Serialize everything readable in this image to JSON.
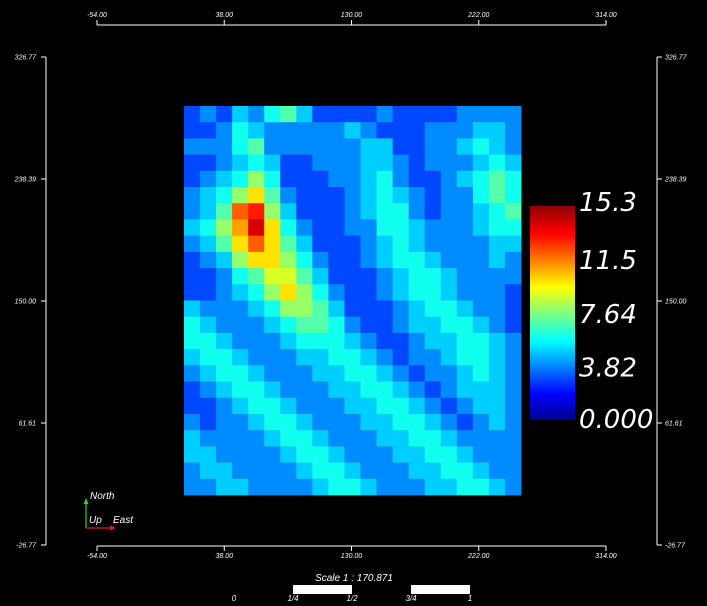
{
  "chart_data": {
    "type": "heatmap",
    "x_ticks": [
      "-54.00",
      "38.00",
      "130.00",
      "222.00",
      "314.00"
    ],
    "y_ticks": [
      "326.77",
      "238.39",
      "150.00",
      "61.61",
      "-26.77"
    ],
    "xlim": [
      -54,
      314
    ],
    "ylim": [
      -26.77,
      326.77
    ],
    "colorbar": {
      "min": 0,
      "max": 15.3,
      "tick_labels": [
        "15.3",
        "11.5",
        "7.64",
        "3.82",
        "0.000"
      ],
      "tick_values": [
        15.3,
        11.5,
        7.64,
        3.82,
        0.0
      ],
      "colormap": "jet"
    },
    "grid_approx": {
      "rows": 24,
      "cols": 21,
      "values": [
        [
          3,
          4,
          3,
          5,
          4,
          6,
          7,
          5,
          3,
          3,
          3,
          3,
          4,
          3,
          3,
          3,
          3,
          4,
          4,
          4,
          4
        ],
        [
          3,
          3,
          4,
          6,
          5,
          4,
          4,
          4,
          4,
          4,
          5,
          4,
          3,
          3,
          3,
          4,
          4,
          4,
          5,
          5,
          4
        ],
        [
          4,
          4,
          4,
          6,
          7,
          4,
          4,
          4,
          4,
          4,
          4,
          5,
          5,
          3,
          3,
          4,
          4,
          5,
          6,
          5,
          4
        ],
        [
          3,
          3,
          4,
          5,
          6,
          5,
          3,
          3,
          4,
          4,
          4,
          5,
          5,
          4,
          3,
          4,
          4,
          4,
          5,
          6,
          5
        ],
        [
          3,
          4,
          5,
          6,
          8,
          6,
          3,
          3,
          3,
          4,
          4,
          5,
          6,
          4,
          3,
          3,
          4,
          5,
          6,
          7,
          6
        ],
        [
          4,
          5,
          6,
          8,
          10,
          7,
          4,
          3,
          3,
          3,
          4,
          5,
          6,
          5,
          4,
          3,
          4,
          4,
          6,
          7,
          6
        ],
        [
          4,
          5,
          7,
          12,
          13,
          8,
          5,
          3,
          3,
          3,
          4,
          5,
          6,
          6,
          4,
          3,
          4,
          4,
          5,
          6,
          7
        ],
        [
          5,
          6,
          8,
          11,
          14,
          10,
          6,
          4,
          3,
          3,
          4,
          4,
          6,
          6,
          5,
          4,
          4,
          4,
          5,
          6,
          6
        ],
        [
          4,
          5,
          7,
          10,
          12,
          10,
          7,
          5,
          3,
          3,
          3,
          4,
          5,
          6,
          5,
          4,
          4,
          4,
          4,
          5,
          5
        ],
        [
          3,
          4,
          5,
          8,
          10,
          10,
          8,
          6,
          4,
          3,
          3,
          4,
          5,
          6,
          6,
          5,
          4,
          4,
          4,
          5,
          4
        ],
        [
          3,
          3,
          4,
          6,
          7,
          9,
          9,
          7,
          5,
          3,
          3,
          3,
          4,
          5,
          6,
          6,
          5,
          4,
          4,
          4,
          4
        ],
        [
          3,
          3,
          4,
          5,
          6,
          8,
          10,
          8,
          6,
          4,
          3,
          3,
          4,
          5,
          6,
          6,
          5,
          4,
          4,
          4,
          3
        ],
        [
          5,
          4,
          4,
          4,
          5,
          6,
          8,
          8,
          7,
          5,
          3,
          3,
          3,
          4,
          5,
          6,
          6,
          5,
          4,
          4,
          3
        ],
        [
          6,
          5,
          4,
          4,
          4,
          5,
          6,
          7,
          7,
          6,
          4,
          3,
          3,
          4,
          5,
          5,
          6,
          6,
          5,
          4,
          3
        ],
        [
          6,
          6,
          5,
          4,
          4,
          4,
          5,
          6,
          6,
          6,
          5,
          4,
          3,
          3,
          4,
          5,
          5,
          6,
          6,
          5,
          4
        ],
        [
          5,
          6,
          6,
          5,
          4,
          4,
          4,
          5,
          5,
          6,
          6,
          5,
          4,
          3,
          4,
          4,
          5,
          6,
          6,
          5,
          4
        ],
        [
          4,
          5,
          6,
          6,
          5,
          4,
          4,
          4,
          5,
          5,
          6,
          6,
          5,
          4,
          3,
          4,
          4,
          5,
          6,
          5,
          4
        ],
        [
          3,
          4,
          5,
          6,
          6,
          5,
          4,
          4,
          4,
          5,
          5,
          6,
          6,
          5,
          4,
          3,
          4,
          5,
          5,
          5,
          4
        ],
        [
          3,
          3,
          4,
          5,
          6,
          6,
          5,
          4,
          4,
          4,
          5,
          5,
          6,
          6,
          5,
          4,
          3,
          4,
          5,
          5,
          4
        ],
        [
          4,
          3,
          4,
          4,
          5,
          6,
          6,
          5,
          4,
          4,
          4,
          5,
          5,
          6,
          6,
          5,
          4,
          3,
          4,
          5,
          4
        ],
        [
          5,
          4,
          4,
          4,
          4,
          5,
          6,
          6,
          5,
          4,
          4,
          4,
          5,
          5,
          6,
          6,
          5,
          4,
          4,
          4,
          4
        ],
        [
          5,
          5,
          4,
          4,
          4,
          4,
          5,
          6,
          6,
          5,
          4,
          4,
          4,
          5,
          5,
          6,
          6,
          5,
          4,
          4,
          4
        ],
        [
          4,
          5,
          5,
          4,
          4,
          4,
          4,
          5,
          6,
          6,
          5,
          4,
          4,
          4,
          5,
          5,
          6,
          6,
          5,
          4,
          4
        ],
        [
          4,
          4,
          5,
          5,
          4,
          4,
          4,
          4,
          5,
          6,
          6,
          5,
          4,
          4,
          4,
          5,
          5,
          6,
          6,
          5,
          4
        ]
      ]
    }
  },
  "compass": {
    "north_label": "North",
    "up_label": "Up",
    "east_label": "East"
  },
  "scale_bar": {
    "label": "Scale 1 : 170.871",
    "ticks": [
      "0",
      "1/4",
      "1/2",
      "3/4",
      "1"
    ]
  }
}
